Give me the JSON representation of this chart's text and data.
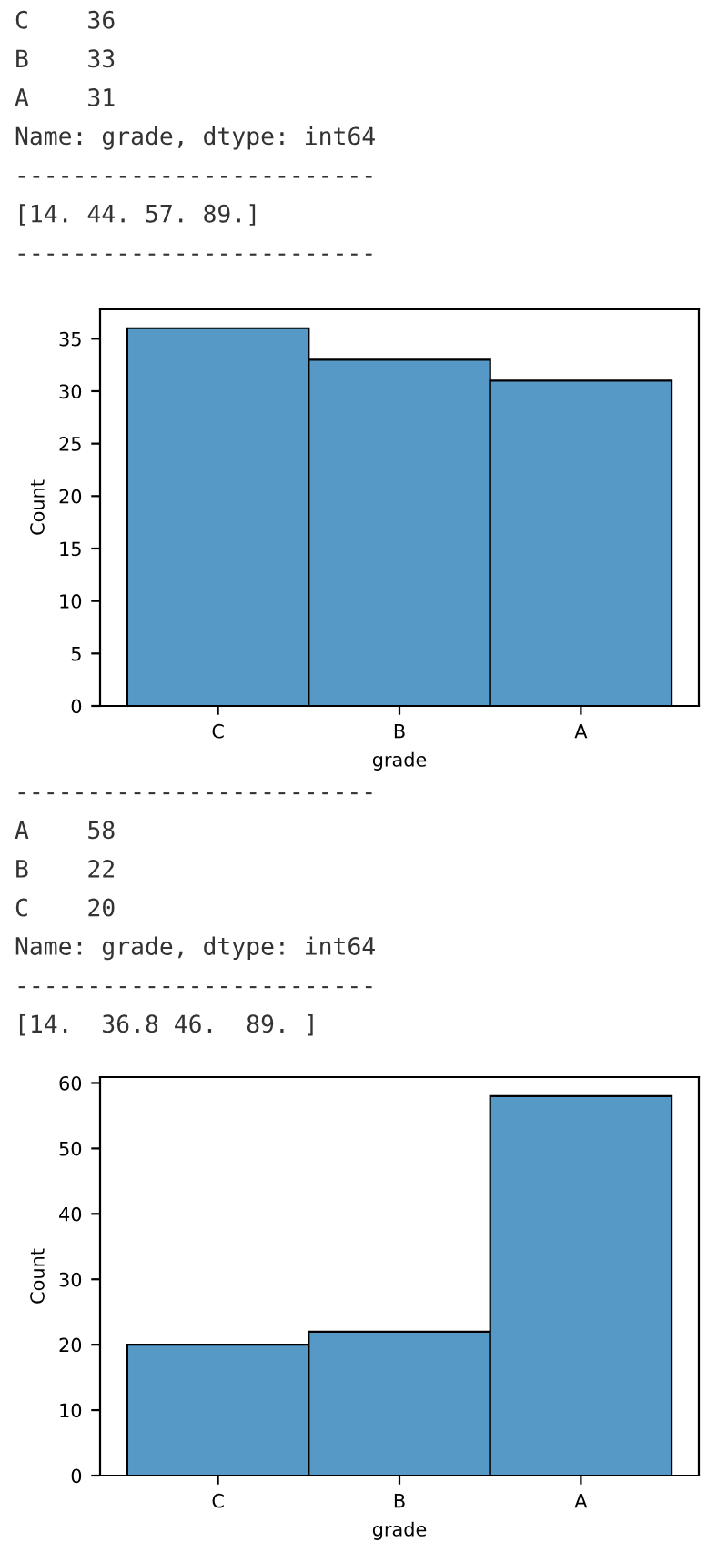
{
  "chart_data": [
    {
      "type": "bar",
      "categories": [
        "C",
        "B",
        "A"
      ],
      "values": [
        36,
        33,
        31
      ],
      "color": "#5799c6",
      "xlabel": "grade",
      "ylabel": "Count",
      "ylim": [
        0,
        37.8
      ],
      "yticks": [
        0,
        5,
        10,
        15,
        20,
        25,
        30,
        35
      ],
      "grid": false,
      "annotations": [
        "C    36",
        "B    33",
        "A    31",
        "Name: grade, dtype: int64",
        "-------------------------",
        "[14. 44. 57. 89.]",
        "-------------------------"
      ]
    },
    {
      "type": "bar",
      "categories": [
        "C",
        "B",
        "A"
      ],
      "values": [
        20,
        22,
        58
      ],
      "color": "#5799c6",
      "xlabel": "grade",
      "ylabel": "Count",
      "ylim": [
        0,
        60.9
      ],
      "yticks": [
        0,
        10,
        20,
        30,
        40,
        50,
        60
      ],
      "grid": false,
      "annotations": [
        "-------------------------",
        "A    58",
        "B    22",
        "C    20",
        "Name: grade, dtype: int64",
        "-------------------------",
        "[14.  36.8 46.  89. ]"
      ]
    }
  ]
}
